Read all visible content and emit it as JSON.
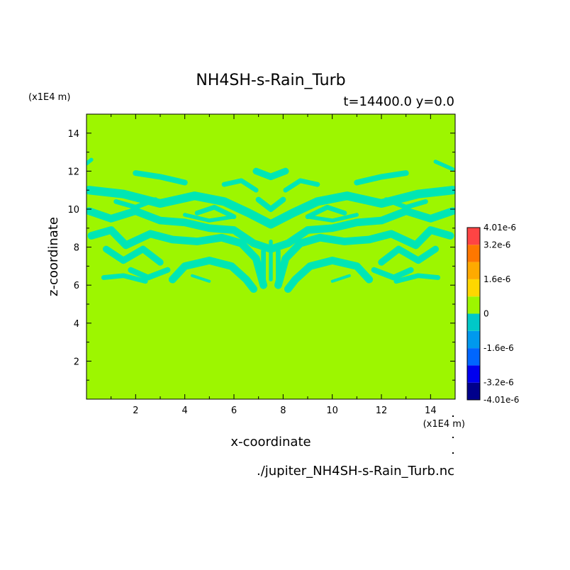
{
  "chart_data": {
    "type": "heatmap",
    "title": "NH4SH-s-Rain_Turb",
    "subtitle": "t=14400.0 y=0.0",
    "xlabel": "x-coordinate",
    "ylabel": "z-coordinate",
    "x_unit": "(x1E4 m)",
    "z_unit": "(x1E4 m)",
    "xlim": [
      0,
      15
    ],
    "ylim": [
      0,
      15
    ],
    "x_ticks": [
      2,
      4,
      6,
      8,
      10,
      12,
      14
    ],
    "y_ticks": [
      2,
      4,
      6,
      8,
      10,
      12,
      14
    ],
    "x_tick_labels": [
      "2",
      "4",
      "6",
      "8",
      "10",
      "12",
      "14"
    ],
    "y_tick_labels": [
      "2",
      "4",
      "6",
      "8",
      "10",
      "12",
      "14"
    ],
    "source_file": "./jupiter_NH4SH-s-Rain_Turb.nc",
    "colorbar": {
      "levels": [
        -4.01e-06,
        -3.2e-06,
        -2.4e-06,
        -1.6e-06,
        -8e-07,
        0,
        8e-07,
        1.6e-06,
        2.4e-06,
        3.2e-06,
        4.01e-06
      ],
      "colors": [
        "#00008b",
        "#0000ee",
        "#0066ff",
        "#0099ee",
        "#00c8c8",
        "#9df600",
        "#ffd700",
        "#ffaa00",
        "#ff7700",
        "#ff4444"
      ],
      "tick_labels": [
        "4.01e-6",
        "3.2e-6",
        "1.6e-6",
        "0",
        "-1.6e-6",
        "-3.2e-6",
        "-4.01e-6"
      ]
    },
    "background_level": 0,
    "regions": [
      {
        "level_range": [
          -8e-07,
          0
        ],
        "color": "#00e6b4",
        "description_z_range": [
          5.5,
          12.5
        ],
        "bands": [
          {
            "pts": [
              [
                0.1,
                11.0
              ],
              [
                1.5,
                10.8
              ],
              [
                3.0,
                10.3
              ],
              [
                4.4,
                10.7
              ],
              [
                5.6,
                10.4
              ],
              [
                6.6,
                9.8
              ],
              [
                7.5,
                9.2
              ],
              [
                8.4,
                9.8
              ],
              [
                9.4,
                10.4
              ],
              [
                10.6,
                10.7
              ],
              [
                12.0,
                10.3
              ],
              [
                13.5,
                10.8
              ],
              [
                14.9,
                11.0
              ]
            ],
            "w": 0.45
          },
          {
            "pts": [
              [
                0.1,
                9.9
              ],
              [
                1.0,
                9.5
              ],
              [
                2.0,
                9.9
              ],
              [
                3.0,
                9.4
              ],
              [
                4.0,
                9.3
              ],
              [
                5.0,
                9.0
              ],
              [
                6.0,
                8.9
              ],
              [
                6.8,
                8.2
              ],
              [
                7.5,
                7.9
              ],
              [
                8.2,
                8.2
              ],
              [
                9.0,
                8.9
              ],
              [
                10.0,
                9.0
              ],
              [
                11.0,
                9.3
              ],
              [
                12.0,
                9.4
              ],
              [
                13.0,
                9.9
              ],
              [
                14.0,
                9.5
              ],
              [
                14.9,
                9.9
              ]
            ],
            "w": 0.4
          },
          {
            "pts": [
              [
                0.2,
                8.6
              ],
              [
                1.0,
                8.9
              ],
              [
                1.6,
                8.1
              ],
              [
                2.6,
                8.7
              ],
              [
                3.5,
                8.4
              ],
              [
                4.5,
                8.3
              ],
              [
                5.5,
                8.5
              ],
              [
                6.3,
                8.2
              ],
              [
                6.9,
                7.4
              ],
              [
                7.2,
                6.0
              ]
            ],
            "w": 0.4
          },
          {
            "pts": [
              [
                14.8,
                8.6
              ],
              [
                14.0,
                8.9
              ],
              [
                13.4,
                8.1
              ],
              [
                12.4,
                8.7
              ],
              [
                11.5,
                8.4
              ],
              [
                10.5,
                8.3
              ],
              [
                9.5,
                8.5
              ],
              [
                8.7,
                8.2
              ],
              [
                8.1,
                7.4
              ],
              [
                7.8,
                6.0
              ]
            ],
            "w": 0.4
          },
          {
            "pts": [
              [
                0.8,
                7.9
              ],
              [
                1.5,
                7.3
              ],
              [
                2.3,
                7.9
              ],
              [
                3.0,
                7.2
              ]
            ],
            "w": 0.35
          },
          {
            "pts": [
              [
                14.2,
                7.9
              ],
              [
                13.5,
                7.3
              ],
              [
                12.7,
                7.9
              ],
              [
                12.0,
                7.2
              ]
            ],
            "w": 0.35
          },
          {
            "pts": [
              [
                3.5,
                6.3
              ],
              [
                4.0,
                7.0
              ],
              [
                5.0,
                7.3
              ],
              [
                5.9,
                7.0
              ],
              [
                6.5,
                6.3
              ],
              [
                6.8,
                5.8
              ]
            ],
            "w": 0.4
          },
          {
            "pts": [
              [
                11.5,
                6.3
              ],
              [
                11.0,
                7.0
              ],
              [
                10.0,
                7.3
              ],
              [
                9.1,
                7.0
              ],
              [
                8.5,
                6.3
              ],
              [
                8.2,
                5.8
              ]
            ],
            "w": 0.4
          },
          {
            "pts": [
              [
                1.8,
                6.8
              ],
              [
                2.5,
                6.4
              ],
              [
                3.3,
                6.8
              ]
            ],
            "w": 0.3
          },
          {
            "pts": [
              [
                13.2,
                6.8
              ],
              [
                12.5,
                6.4
              ],
              [
                11.7,
                6.8
              ]
            ],
            "w": 0.3
          },
          {
            "pts": [
              [
                0.7,
                6.4
              ],
              [
                1.5,
                6.5
              ],
              [
                2.4,
                6.2
              ]
            ],
            "w": 0.25
          },
          {
            "pts": [
              [
                14.3,
                6.4
              ],
              [
                13.5,
                6.5
              ],
              [
                12.6,
                6.2
              ]
            ],
            "w": 0.25
          },
          {
            "pts": [
              [
                2.0,
                11.9
              ],
              [
                3.0,
                11.7
              ],
              [
                4.0,
                11.4
              ]
            ],
            "w": 0.3
          },
          {
            "pts": [
              [
                13.0,
                11.9
              ],
              [
                12.0,
                11.7
              ],
              [
                11.0,
                11.4
              ]
            ],
            "w": 0.3
          },
          {
            "pts": [
              [
                6.9,
                12.0
              ],
              [
                7.5,
                11.7
              ],
              [
                8.1,
                12.0
              ]
            ],
            "w": 0.35
          },
          {
            "pts": [
              [
                5.6,
                11.3
              ],
              [
                6.3,
                11.5
              ],
              [
                6.9,
                11.0
              ]
            ],
            "w": 0.25
          },
          {
            "pts": [
              [
                9.4,
                11.3
              ],
              [
                8.7,
                11.5
              ],
              [
                8.1,
                11.0
              ]
            ],
            "w": 0.25
          },
          {
            "pts": [
              [
                7.0,
                10.5
              ],
              [
                7.5,
                10.0
              ],
              [
                8.0,
                10.5
              ]
            ],
            "w": 0.3
          },
          {
            "pts": [
              [
                4.5,
                9.8
              ],
              [
                5.2,
                10.1
              ],
              [
                6.0,
                9.6
              ]
            ],
            "w": 0.25
          },
          {
            "pts": [
              [
                10.5,
                9.8
              ],
              [
                9.8,
                10.1
              ],
              [
                9.0,
                9.6
              ]
            ],
            "w": 0.25
          },
          {
            "pts": [
              [
                7.2,
                7.8
              ],
              [
                7.2,
                6.0
              ]
            ],
            "w": 0.25
          },
          {
            "pts": [
              [
                7.8,
                7.8
              ],
              [
                7.8,
                6.0
              ]
            ],
            "w": 0.25
          },
          {
            "pts": [
              [
                7.5,
                8.3
              ],
              [
                7.5,
                6.3
              ]
            ],
            "w": 0.2
          },
          {
            "pts": [
              [
                0.0,
                12.4
              ],
              [
                0.2,
                12.6
              ]
            ],
            "w": 0.2
          },
          {
            "pts": [
              [
                14.2,
                12.5
              ],
              [
                14.9,
                12.1
              ]
            ],
            "w": 0.2
          },
          {
            "pts": [
              [
                4.0,
                9.7
              ],
              [
                5.0,
                9.4
              ],
              [
                6.0,
                9.6
              ]
            ],
            "w": 0.2
          },
          {
            "pts": [
              [
                11.0,
                9.7
              ],
              [
                10.0,
                9.4
              ],
              [
                9.0,
                9.6
              ]
            ],
            "w": 0.2
          },
          {
            "pts": [
              [
                1.2,
                10.4
              ],
              [
                2.0,
                10.1
              ],
              [
                2.8,
                10.5
              ]
            ],
            "w": 0.25
          },
          {
            "pts": [
              [
                13.8,
                10.4
              ],
              [
                13.0,
                10.1
              ],
              [
                12.2,
                10.5
              ]
            ],
            "w": 0.25
          },
          {
            "pts": [
              [
                4.3,
                6.5
              ],
              [
                5.0,
                6.2
              ]
            ],
            "w": 0.15
          },
          {
            "pts": [
              [
                10.7,
                6.5
              ],
              [
                10.0,
                6.2
              ]
            ],
            "w": 0.15
          }
        ]
      }
    ]
  }
}
